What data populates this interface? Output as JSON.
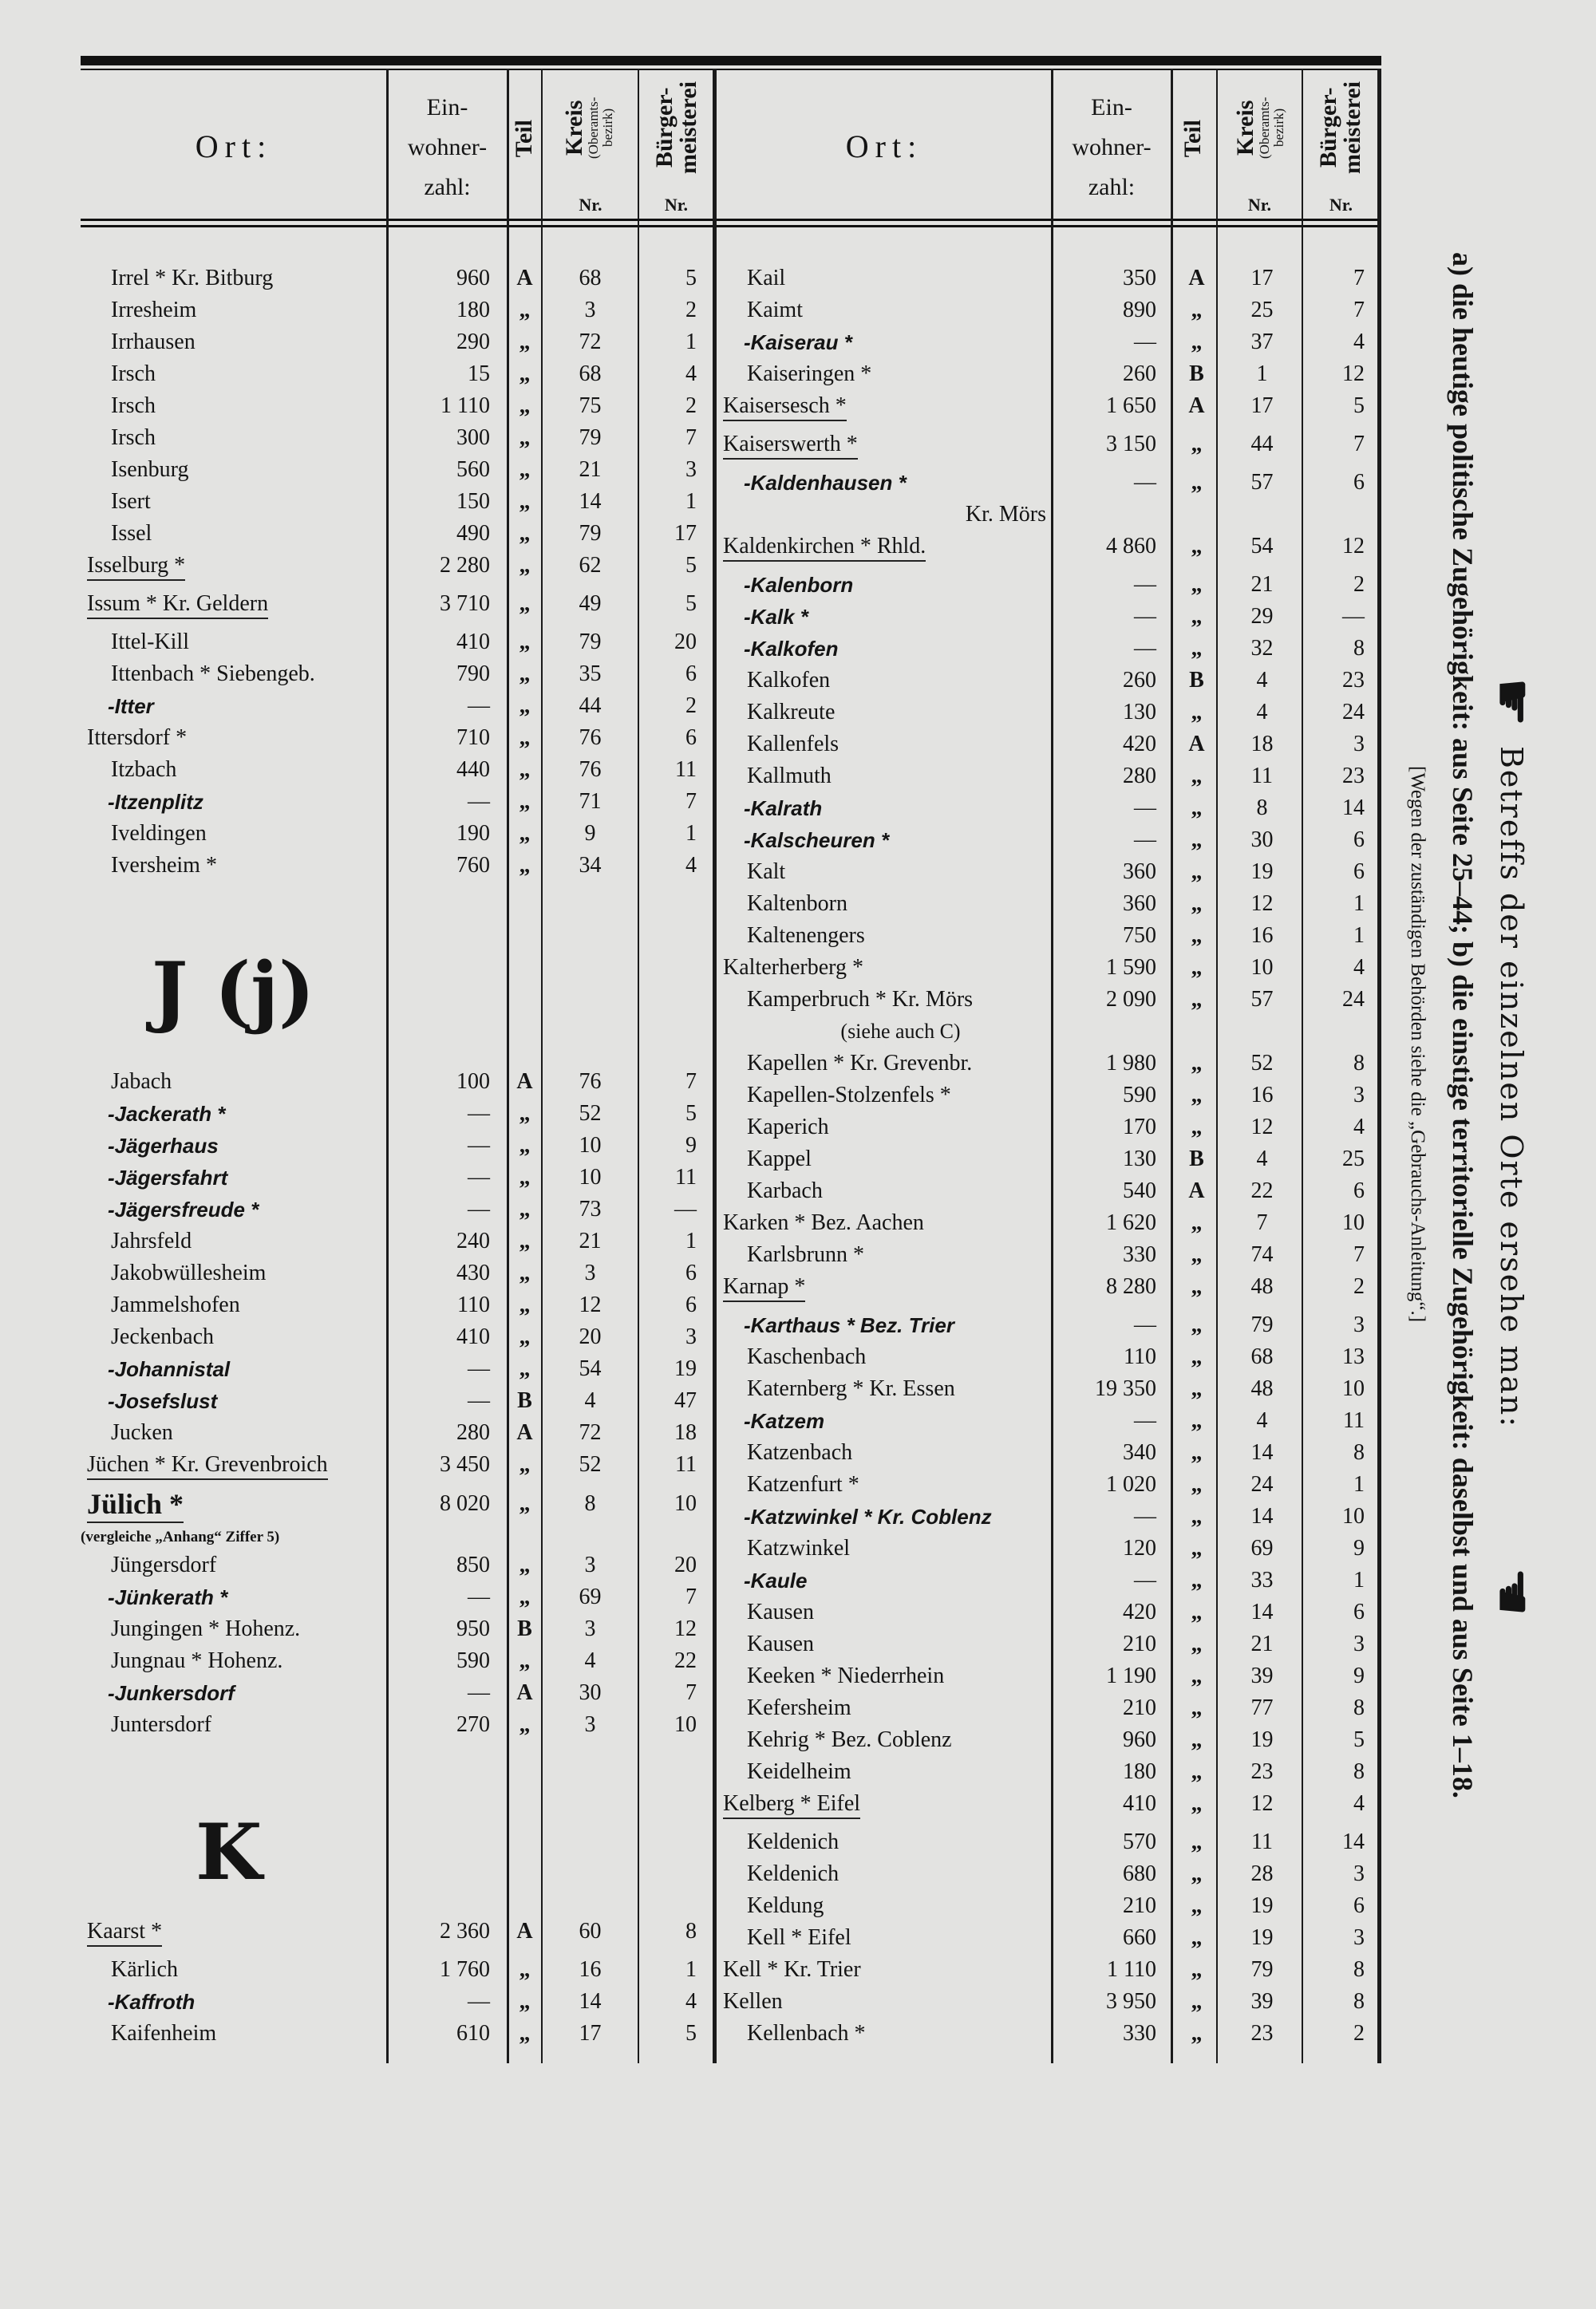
{
  "header": {
    "ort": "Ort:",
    "einwohner": [
      "Ein-",
      "wohner-",
      "zahl:"
    ],
    "teil": "Teil",
    "kreis": "Kreis",
    "kreis_sub": "(Oberamts-bezirk)",
    "kreis_nr": "Nr.",
    "buerger": "Bürger-meisterei",
    "buerger_nr": "Nr."
  },
  "left": {
    "blocks": [
      {
        "heading": "",
        "rows": [
          [
            "Irrel * Kr. Bitburg",
            "960",
            "A",
            "68",
            "5",
            ""
          ],
          [
            "Irresheim",
            "180",
            "„",
            "3",
            "2",
            ""
          ],
          [
            "Irrhausen",
            "290",
            "„",
            "72",
            "1",
            ""
          ],
          [
            "Irsch",
            "15",
            "„",
            "68",
            "4",
            ""
          ],
          [
            "Irsch",
            "1 110",
            "„",
            "75",
            "2",
            ""
          ],
          [
            "Irsch",
            "300",
            "„",
            "79",
            "7",
            ""
          ],
          [
            "Isenburg",
            "560",
            "„",
            "21",
            "3",
            ""
          ],
          [
            "Isert",
            "150",
            "„",
            "14",
            "1",
            ""
          ],
          [
            "Issel",
            "490",
            "„",
            "79",
            "17",
            ""
          ],
          [
            "Isselburg *",
            "2 280",
            "„",
            "62",
            "5",
            "flush underline"
          ],
          [
            "Issum * Kr. Geldern",
            "3 710",
            "„",
            "49",
            "5",
            "flush underline"
          ],
          [
            "Ittel-Kill",
            "410",
            "„",
            "79",
            "20",
            ""
          ],
          [
            "Ittenbach * Siebengeb.",
            "790",
            "„",
            "35",
            "6",
            ""
          ],
          [
            "-Itter",
            "—",
            "„",
            "44",
            "2",
            "italic"
          ],
          [
            "Ittersdorf *",
            "710",
            "„",
            "76",
            "6",
            "flush"
          ],
          [
            "Itzbach",
            "440",
            "„",
            "76",
            "11",
            ""
          ],
          [
            "-Itzenplitz",
            "—",
            "„",
            "71",
            "7",
            "italic"
          ],
          [
            "Iveldingen",
            "190",
            "„",
            "9",
            "1",
            ""
          ],
          [
            "Iversheim *",
            "760",
            "„",
            "34",
            "4",
            ""
          ]
        ]
      },
      {
        "heading": "J (j)",
        "rows": [
          [
            "Jabach",
            "100",
            "A",
            "76",
            "7",
            ""
          ],
          [
            "-Jackerath *",
            "—",
            "„",
            "52",
            "5",
            "italic"
          ],
          [
            "-Jägerhaus",
            "—",
            "„",
            "10",
            "9",
            "italic"
          ],
          [
            "-Jägersfahrt",
            "—",
            "„",
            "10",
            "11",
            "italic"
          ],
          [
            "-Jägersfreude *",
            "—",
            "„",
            "73",
            "—",
            "italic"
          ],
          [
            "Jahrsfeld",
            "240",
            "„",
            "21",
            "1",
            ""
          ],
          [
            "Jakobwüllesheim",
            "430",
            "„",
            "3",
            "6",
            ""
          ],
          [
            "Jammelshofen",
            "110",
            "„",
            "12",
            "6",
            ""
          ],
          [
            "Jeckenbach",
            "410",
            "„",
            "20",
            "3",
            ""
          ],
          [
            "-Johannistal",
            "—",
            "„",
            "54",
            "19",
            "italic"
          ],
          [
            "-Josefslust",
            "—",
            "B",
            "4",
            "47",
            "italic"
          ],
          [
            "Jucken",
            "280",
            "A",
            "72",
            "18",
            ""
          ],
          [
            "Jüchen * Kr. Grevenbroich",
            "3 450",
            "„",
            "52",
            "11",
            "flush underline"
          ],
          [
            "Jülich *",
            "8 020",
            "„",
            "8",
            "10",
            "flush underline big"
          ],
          [
            "(vergleiche „Anhang“ Ziffer 5)",
            "",
            "",
            "",
            "",
            "note"
          ],
          [
            "Jüngersdorf",
            "850",
            "„",
            "3",
            "20",
            ""
          ],
          [
            "-Jünkerath *",
            "—",
            "„",
            "69",
            "7",
            "italic"
          ],
          [
            "Jungingen * Hohenz.",
            "950",
            "B",
            "3",
            "12",
            ""
          ],
          [
            "Jungnau * Hohenz.",
            "590",
            "„",
            "4",
            "22",
            ""
          ],
          [
            "-Junkersdorf",
            "—",
            "A",
            "30",
            "7",
            "italic"
          ],
          [
            "Juntersdorf",
            "270",
            "„",
            "3",
            "10",
            ""
          ]
        ]
      },
      {
        "heading": "K",
        "rows": [
          [
            "Kaarst *",
            "2 360",
            "A",
            "60",
            "8",
            "flush underline"
          ],
          [
            "Kärlich",
            "1 760",
            "„",
            "16",
            "1",
            ""
          ],
          [
            "-Kaffroth",
            "—",
            "„",
            "14",
            "4",
            "italic"
          ],
          [
            "Kaifenheim",
            "610",
            "„",
            "17",
            "5",
            ""
          ]
        ]
      }
    ]
  },
  "right": {
    "rows": [
      [
        "Kail",
        "350",
        "A",
        "17",
        "7",
        ""
      ],
      [
        "Kaimt",
        "890",
        "„",
        "25",
        "7",
        ""
      ],
      [
        "-Kaiserau *",
        "—",
        "„",
        "37",
        "4",
        "italic"
      ],
      [
        "Kaiseringen *",
        "260",
        "B",
        "1",
        "12",
        ""
      ],
      [
        "Kaisersesch *",
        "1 650",
        "A",
        "17",
        "5",
        "flush underline"
      ],
      [
        "Kaiserswerth *",
        "3 150",
        "„",
        "44",
        "7",
        "flush underline"
      ],
      [
        "-Kaldenhausen *",
        "—",
        "„",
        "57",
        "6",
        "italic"
      ],
      [
        "Kr. Mörs",
        "",
        "",
        "",
        "",
        "cont"
      ],
      [
        "Kaldenkirchen * Rhld.",
        "4 860",
        "„",
        "54",
        "12",
        "flush underline"
      ],
      [
        "-Kalenborn",
        "—",
        "„",
        "21",
        "2",
        "italic"
      ],
      [
        "-Kalk *",
        "—",
        "„",
        "29",
        "—",
        "italic"
      ],
      [
        "-Kalkofen",
        "—",
        "„",
        "32",
        "8",
        "italic"
      ],
      [
        "Kalkofen",
        "260",
        "B",
        "4",
        "23",
        ""
      ],
      [
        "Kalkreute",
        "130",
        "„",
        "4",
        "24",
        ""
      ],
      [
        "Kallenfels",
        "420",
        "A",
        "18",
        "3",
        ""
      ],
      [
        "Kallmuth",
        "280",
        "„",
        "11",
        "23",
        ""
      ],
      [
        "-Kalrath",
        "—",
        "„",
        "8",
        "14",
        "italic"
      ],
      [
        "-Kalscheuren *",
        "—",
        "„",
        "30",
        "6",
        "italic"
      ],
      [
        "Kalt",
        "360",
        "„",
        "19",
        "6",
        ""
      ],
      [
        "Kaltenborn",
        "360",
        "„",
        "12",
        "1",
        ""
      ],
      [
        "Kaltenengers",
        "750",
        "„",
        "16",
        "1",
        ""
      ],
      [
        "Kalterherberg *",
        "1 590",
        "„",
        "10",
        "4",
        "flush"
      ],
      [
        "Kamperbruch * Kr. Mörs",
        "2 090",
        "„",
        "57",
        "24",
        ""
      ],
      [
        "(siehe auch C)",
        "",
        "",
        "",
        "",
        "center"
      ],
      [
        "Kapellen * Kr. Grevenbr.",
        "1 980",
        "„",
        "52",
        "8",
        ""
      ],
      [
        "Kapellen-Stolzenfels *",
        "590",
        "„",
        "16",
        "3",
        ""
      ],
      [
        "Kaperich",
        "170",
        "„",
        "12",
        "4",
        ""
      ],
      [
        "Kappel",
        "130",
        "B",
        "4",
        "25",
        ""
      ],
      [
        "Karbach",
        "540",
        "A",
        "22",
        "6",
        ""
      ],
      [
        "Karken * Bez. Aachen",
        "1 620",
        "„",
        "7",
        "10",
        "flush"
      ],
      [
        "Karlsbrunn *",
        "330",
        "„",
        "74",
        "7",
        ""
      ],
      [
        "Karnap *",
        "8 280",
        "„",
        "48",
        "2",
        "flush underline"
      ],
      [
        "-Karthaus * Bez. Trier",
        "—",
        "„",
        "79",
        "3",
        "italic"
      ],
      [
        "Kaschenbach",
        "110",
        "„",
        "68",
        "13",
        ""
      ],
      [
        "Katernberg * Kr. Essen",
        "19 350",
        "„",
        "48",
        "10",
        ""
      ],
      [
        "-Katzem",
        "—",
        "„",
        "4",
        "11",
        "italic"
      ],
      [
        "Katzenbach",
        "340",
        "„",
        "14",
        "8",
        ""
      ],
      [
        "Katzenfurt *",
        "1 020",
        "„",
        "24",
        "1",
        ""
      ],
      [
        "-Katzwinkel * Kr. Coblenz",
        "—",
        "„",
        "14",
        "10",
        "italic"
      ],
      [
        "Katzwinkel",
        "120",
        "„",
        "69",
        "9",
        ""
      ],
      [
        "-Kaule",
        "—",
        "„",
        "33",
        "1",
        "italic"
      ],
      [
        "Kausen",
        "420",
        "„",
        "14",
        "6",
        ""
      ],
      [
        "Kausen",
        "210",
        "„",
        "21",
        "3",
        ""
      ],
      [
        "Keeken * Niederrhein",
        "1 190",
        "„",
        "39",
        "9",
        ""
      ],
      [
        "Kefersheim",
        "210",
        "„",
        "77",
        "8",
        ""
      ],
      [
        "Kehrig * Bez. Coblenz",
        "960",
        "„",
        "19",
        "5",
        ""
      ],
      [
        "Keidelheim",
        "180",
        "„",
        "23",
        "8",
        ""
      ],
      [
        "Kelberg * Eifel",
        "410",
        "„",
        "12",
        "4",
        "flush underline"
      ],
      [
        "Keldenich",
        "570",
        "„",
        "11",
        "14",
        ""
      ],
      [
        "Keldenich",
        "680",
        "„",
        "28",
        "3",
        ""
      ],
      [
        "Keldung",
        "210",
        "„",
        "19",
        "6",
        ""
      ],
      [
        "Kell * Eifel",
        "660",
        "„",
        "19",
        "3",
        ""
      ],
      [
        "Kell * Kr. Trier",
        "1 110",
        "„",
        "79",
        "8",
        "flush"
      ],
      [
        "Kellen",
        "3 950",
        "„",
        "39",
        "8",
        "flush"
      ],
      [
        "Kellenbach *",
        "330",
        "„",
        "23",
        "2",
        ""
      ]
    ]
  },
  "margin_note": {
    "title": "Betreffs der einzelnen Orte ersehe man:",
    "line": "a) die heutige politische Zugehörigkeit: aus Seite 25–44; b) die einstige territorielle Zugehörigkeit: daselbst und aus Seite 1–18.",
    "bracket": "[Wegen der zuständigen Behörden siehe die „Gebrauchs-Anleitung“.]",
    "icons": [
      "pointing-hand-icon",
      "pointing-hand-icon"
    ]
  }
}
